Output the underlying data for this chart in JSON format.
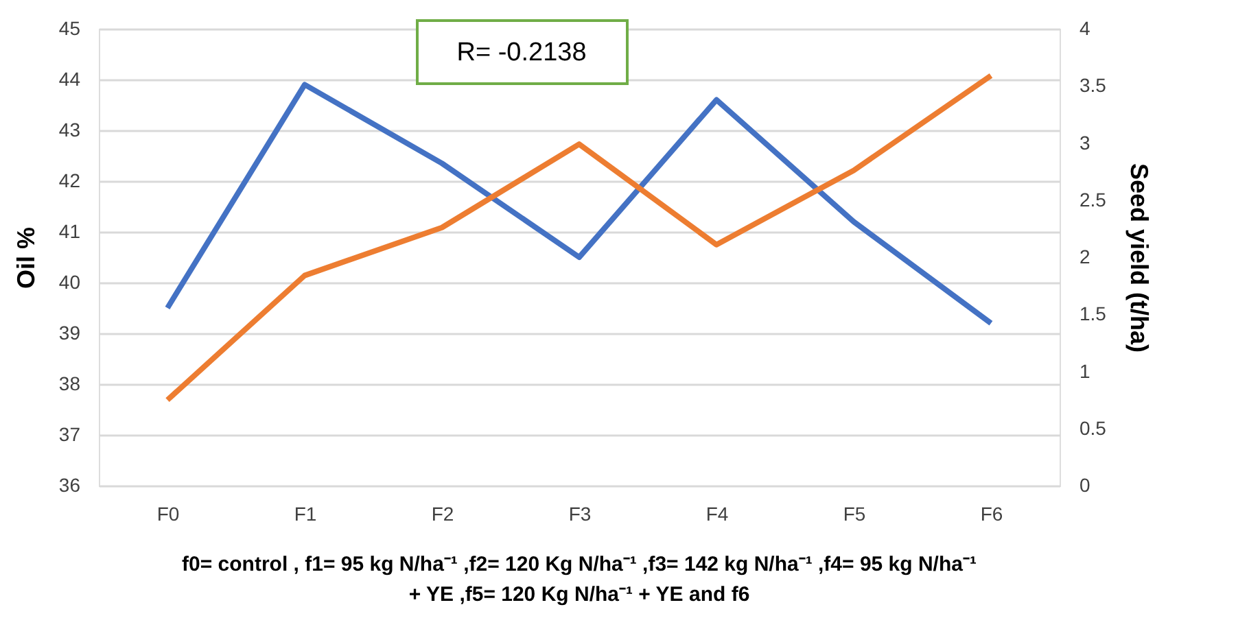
{
  "chart_data": {
    "type": "line",
    "categories": [
      "F0",
      "F1",
      "F2",
      "F3",
      "F4",
      "F5",
      "F6"
    ],
    "series": [
      {
        "color": "#4472c4",
        "values": [
          39.5,
          43.9,
          42.35,
          40.5,
          43.6,
          41.2,
          39.2
        ]
      },
      {
        "color": "#ed7d31",
        "axis": "y2",
        "values": [
          0.75,
          1.84,
          2.26,
          2.99,
          2.11,
          2.76,
          3.59
        ]
      }
    ],
    "ylabel": "Oil %",
    "y2label": "Seed yield (t/ha)",
    "ylim": [
      36,
      45
    ],
    "yticks": [
      36,
      37,
      38,
      39,
      40,
      41,
      42,
      43,
      44,
      45
    ],
    "y2lim": [
      0,
      4
    ],
    "y2ticks": [
      0,
      0.5,
      1,
      1.5,
      2,
      2.5,
      3,
      3.5,
      4
    ],
    "grid": "y",
    "marker": "none",
    "line_style": "solid",
    "annotations": [
      "R= -0.2138",
      "f0= control , f1= 95 kg N/ha⁻¹ ,f2= 120 Kg N/ha⁻¹ ,f3= 142 kg N/ha⁻¹ ,f4= 95 kg N/ha⁻¹\n+ YE ,f5= 120 Kg N/ha⁻¹ + YE  and f6"
    ]
  }
}
